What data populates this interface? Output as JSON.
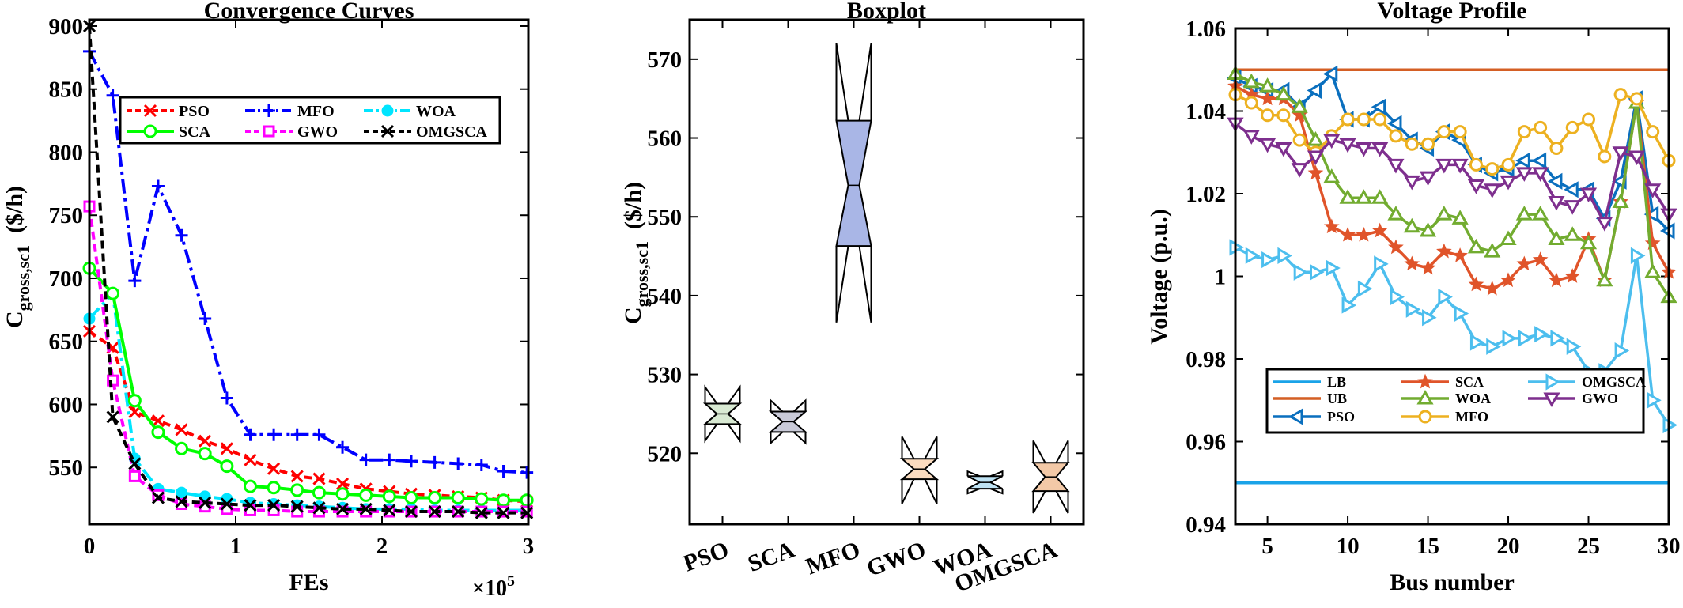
{
  "chart_data": [
    {
      "type": "line",
      "title": "Convergence Curves",
      "xlabel": "FEs",
      "x_multiplier": "×10^5",
      "ylabel": "C_gross,sc1 ($/h)",
      "xlim": [
        0,
        3
      ],
      "ylim": [
        505,
        905
      ],
      "xticks": [
        "0",
        "1",
        "2",
        "3"
      ],
      "yticks": [
        550,
        600,
        650,
        700,
        750,
        800,
        850,
        900
      ],
      "legend_placement": "top-right",
      "series": [
        {
          "name": "PSO",
          "color": "#ff0000",
          "dash": "10,6",
          "marker": "x",
          "x": [
            0,
            0.16,
            0.31,
            0.47,
            0.63,
            0.79,
            0.94,
            1.1,
            1.26,
            1.42,
            1.57,
            1.73,
            1.89,
            2.05,
            2.2,
            2.36,
            2.52,
            2.68,
            2.83,
            2.99
          ],
          "y": [
            658,
            645,
            594,
            587,
            580,
            571,
            565,
            556,
            549,
            543,
            541,
            537,
            533,
            531,
            529,
            528,
            527,
            526,
            524,
            523
          ]
        },
        {
          "name": "MFO",
          "color": "#0000ff",
          "dash": "18,6,4,6",
          "marker": "+",
          "x": [
            0,
            0.16,
            0.31,
            0.47,
            0.63,
            0.79,
            0.94,
            1.1,
            1.26,
            1.42,
            1.57,
            1.73,
            1.89,
            2.05,
            2.2,
            2.36,
            2.52,
            2.68,
            2.83,
            2.99
          ],
          "y": [
            880,
            845,
            698,
            773,
            734,
            668,
            605,
            576,
            576,
            576,
            576,
            566,
            556,
            556,
            555,
            554,
            553,
            552,
            547,
            546
          ]
        },
        {
          "name": "WOA",
          "color": "#00e5ff",
          "dash": "18,6,4,6",
          "marker": "circle-filled",
          "x": [
            0,
            0.16,
            0.31,
            0.47,
            0.63,
            0.79,
            0.94,
            1.1,
            1.26,
            1.42,
            1.57,
            1.73,
            1.89,
            2.05,
            2.2,
            2.36,
            2.52,
            2.68,
            2.83,
            2.99
          ],
          "y": [
            668,
            688,
            557,
            533,
            530,
            527,
            525,
            522,
            521,
            520,
            519,
            518,
            517,
            517,
            517,
            516,
            516,
            516,
            516,
            516
          ]
        },
        {
          "name": "SCA",
          "color": "#00ff00",
          "dash": "",
          "marker": "circle",
          "x": [
            0,
            0.16,
            0.31,
            0.47,
            0.63,
            0.79,
            0.94,
            1.1,
            1.26,
            1.42,
            1.57,
            1.73,
            1.89,
            2.05,
            2.2,
            2.36,
            2.52,
            2.68,
            2.83,
            2.99
          ],
          "y": [
            708,
            688,
            603,
            578,
            565,
            561,
            551,
            535,
            534,
            532,
            530,
            529,
            528,
            527,
            526,
            526,
            526,
            525,
            524,
            524
          ]
        },
        {
          "name": "GWO",
          "color": "#ff00ff",
          "dash": "10,6",
          "marker": "square",
          "x": [
            0,
            0.16,
            0.31,
            0.47,
            0.63,
            0.79,
            0.94,
            1.1,
            1.26,
            1.42,
            1.57,
            1.73,
            1.89,
            2.05,
            2.2,
            2.36,
            2.52,
            2.68,
            2.83,
            2.99
          ],
          "y": [
            757,
            619,
            543,
            528,
            521,
            519,
            517,
            516,
            516,
            515,
            515,
            515,
            515,
            515,
            515,
            515,
            515,
            515,
            515,
            515
          ]
        },
        {
          "name": "OMGSCA",
          "color": "#000000",
          "dash": "10,6",
          "marker": "x",
          "x": [
            0,
            0.16,
            0.31,
            0.47,
            0.63,
            0.79,
            0.94,
            1.1,
            1.26,
            1.42,
            1.57,
            1.73,
            1.89,
            2.05,
            2.2,
            2.36,
            2.52,
            2.68,
            2.83,
            2.99
          ],
          "y": [
            900,
            590,
            553,
            526,
            523,
            522,
            521,
            520,
            520,
            519,
            518,
            517,
            517,
            516,
            515,
            515,
            515,
            514,
            514,
            514
          ]
        }
      ]
    },
    {
      "type": "boxplot",
      "title": "Boxplot",
      "ylabel": "C_gross,sc1 ($/h)",
      "ylim": [
        511,
        575
      ],
      "yticks": [
        520,
        530,
        540,
        550,
        560,
        570
      ],
      "categories": [
        "PSO",
        "SCA",
        "MFO",
        "GWO",
        "WOA",
        "OMGSCA"
      ],
      "boxes": [
        {
          "name": "PSO",
          "color": "#d9ead3",
          "q1": 523.7,
          "median": 525.0,
          "q3": 526.3,
          "notch_lo": 523.7,
          "notch_hi": 526.3,
          "whisker_lo": 521.6,
          "whisker_hi": 528.4
        },
        {
          "name": "SCA",
          "color": "#c9cad8",
          "q1": 522.7,
          "median": 524.0,
          "q3": 525.3,
          "notch_lo": 522.7,
          "notch_hi": 525.3,
          "whisker_lo": 521.3,
          "whisker_hi": 526.7
        },
        {
          "name": "MFO",
          "color": "#a9b6e6",
          "q1": 546.3,
          "median": 554.0,
          "q3": 562.2,
          "notch_lo": 546.3,
          "notch_hi": 562.2,
          "whisker_lo": 536.6,
          "whisker_hi": 572.0
        },
        {
          "name": "GWO",
          "color": "#fbdcc0",
          "q1": 516.7,
          "median": 518.0,
          "q3": 519.3,
          "notch_lo": 516.7,
          "notch_hi": 519.3,
          "whisker_lo": 513.6,
          "whisker_hi": 522.1
        },
        {
          "name": "WOA",
          "color": "#bfe3f4",
          "q1": 515.5,
          "median": 516.3,
          "q3": 517.1,
          "notch_lo": 515.5,
          "notch_hi": 517.1,
          "whisker_lo": 514.9,
          "whisker_hi": 517.7
        },
        {
          "name": "OMGSCA",
          "color": "#f3c9a7",
          "q1": 515.2,
          "median": 517.0,
          "q3": 518.8,
          "notch_lo": 515.2,
          "notch_hi": 518.8,
          "whisker_lo": 512.4,
          "whisker_hi": 521.6
        }
      ]
    },
    {
      "type": "line",
      "title": "Voltage Profile",
      "xlabel": "Bus number",
      "ylabel": "Voltage (p.u.)",
      "xlim": [
        3,
        30
      ],
      "ylim": [
        0.94,
        1.06
      ],
      "xticks": [
        5,
        10,
        15,
        20,
        25,
        30
      ],
      "yticks": [
        "0.94",
        "0.96",
        "0.98",
        "1",
        "1.02",
        "1.04",
        "1.06"
      ],
      "legend_placement": "bottom-left",
      "series": [
        {
          "name": "LB",
          "color": "#1aa3e8",
          "marker": "none",
          "x": [
            3,
            30
          ],
          "y": [
            0.95,
            0.95
          ]
        },
        {
          "name": "UB",
          "color": "#d45f24",
          "marker": "none",
          "x": [
            3,
            30
          ],
          "y": [
            1.05,
            1.05
          ]
        },
        {
          "name": "PSO",
          "color": "#0a6fbe",
          "marker": "triangle-left",
          "x": [
            3,
            4,
            5,
            6,
            7,
            8,
            9,
            10,
            11,
            12,
            13,
            14,
            15,
            16,
            17,
            18,
            19,
            20,
            21,
            22,
            23,
            24,
            25,
            26,
            27,
            28,
            29,
            30
          ],
          "y": [
            1.048,
            1.046,
            1.045,
            1.045,
            1.041,
            1.045,
            1.049,
            1.038,
            1.038,
            1.041,
            1.037,
            1.033,
            1.031,
            1.035,
            1.033,
            1.027,
            1.025,
            1.026,
            1.028,
            1.028,
            1.023,
            1.021,
            1.021,
            1.014,
            1.023,
            1.043,
            1.015,
            1.011
          ]
        },
        {
          "name": "SCA",
          "color": "#e0542a",
          "marker": "star",
          "x": [
            3,
            4,
            5,
            6,
            7,
            8,
            9,
            10,
            11,
            12,
            13,
            14,
            15,
            16,
            17,
            18,
            19,
            20,
            21,
            22,
            23,
            24,
            25,
            26,
            27,
            28,
            29,
            30
          ],
          "y": [
            1.046,
            1.044,
            1.043,
            1.043,
            1.039,
            1.025,
            1.012,
            1.01,
            1.01,
            1.011,
            1.007,
            1.003,
            1.002,
            1.006,
            1.005,
            0.998,
            0.997,
            0.999,
            1.003,
            1.004,
            0.999,
            1.0,
            1.009,
            0.999,
            1.018,
            1.042,
            1.008,
            1.001
          ]
        },
        {
          "name": "WOA",
          "color": "#72ac30",
          "marker": "triangle-up",
          "x": [
            3,
            4,
            5,
            6,
            7,
            8,
            9,
            10,
            11,
            12,
            13,
            14,
            15,
            16,
            17,
            18,
            19,
            20,
            21,
            22,
            23,
            24,
            25,
            26,
            27,
            28,
            29,
            30
          ],
          "y": [
            1.049,
            1.047,
            1.046,
            1.044,
            1.041,
            1.033,
            1.024,
            1.019,
            1.019,
            1.019,
            1.015,
            1.012,
            1.011,
            1.015,
            1.014,
            1.007,
            1.006,
            1.009,
            1.015,
            1.015,
            1.009,
            1.01,
            1.008,
            0.999,
            1.018,
            1.042,
            1.001,
            0.995
          ]
        },
        {
          "name": "MFO",
          "color": "#edb120",
          "marker": "circle",
          "x": [
            3,
            4,
            5,
            6,
            7,
            8,
            9,
            10,
            11,
            12,
            13,
            14,
            15,
            16,
            17,
            18,
            19,
            20,
            21,
            22,
            23,
            24,
            25,
            26,
            27,
            28,
            29,
            30
          ],
          "y": [
            1.044,
            1.042,
            1.039,
            1.039,
            1.033,
            1.03,
            1.034,
            1.038,
            1.038,
            1.038,
            1.034,
            1.032,
            1.032,
            1.035,
            1.035,
            1.027,
            1.026,
            1.027,
            1.035,
            1.036,
            1.031,
            1.036,
            1.038,
            1.029,
            1.044,
            1.043,
            1.035,
            1.028
          ]
        },
        {
          "name": "OMGSCA",
          "color": "#4cbeee",
          "marker": "triangle-right",
          "x": [
            3,
            4,
            5,
            6,
            7,
            8,
            9,
            10,
            11,
            12,
            13,
            14,
            15,
            16,
            17,
            18,
            19,
            20,
            21,
            22,
            23,
            24,
            25,
            26,
            27,
            28,
            29,
            30
          ],
          "y": [
            1.007,
            1.005,
            1.004,
            1.005,
            1.001,
            1.001,
            1.002,
            0.993,
            0.997,
            1.003,
            0.995,
            0.992,
            0.99,
            0.995,
            0.991,
            0.984,
            0.983,
            0.985,
            0.985,
            0.986,
            0.985,
            0.983,
            0.977,
            0.977,
            0.982,
            1.005,
            0.97,
            0.964
          ]
        },
        {
          "name": "GWO",
          "color": "#7e2f8e",
          "marker": "triangle-down",
          "x": [
            3,
            4,
            5,
            6,
            7,
            8,
            9,
            10,
            11,
            12,
            13,
            14,
            15,
            16,
            17,
            18,
            19,
            20,
            21,
            22,
            23,
            24,
            25,
            26,
            27,
            28,
            29,
            30
          ],
          "y": [
            1.037,
            1.034,
            1.032,
            1.031,
            1.026,
            1.029,
            1.033,
            1.032,
            1.031,
            1.031,
            1.027,
            1.023,
            1.024,
            1.027,
            1.027,
            1.022,
            1.021,
            1.023,
            1.025,
            1.025,
            1.018,
            1.017,
            1.02,
            1.013,
            1.03,
            1.029,
            1.021,
            1.015
          ]
        }
      ]
    }
  ]
}
